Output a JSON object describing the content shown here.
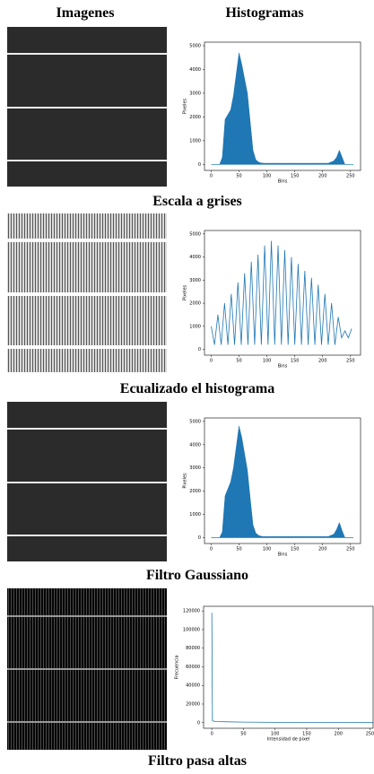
{
  "header": {
    "images": "Imagenes",
    "histograms": "Histogramas"
  },
  "captions": [
    "Escala a grises",
    "Ecualizado el histograma",
    "Filtro Gaussiano",
    "Filtro pasa altas"
  ],
  "chart_data": [
    {
      "type": "area",
      "color": "#1f77b4",
      "xlabel": "Bins",
      "ylabel": "Pixeles",
      "xlim": [
        -12,
        268
      ],
      "ylim": [
        -250,
        5150
      ],
      "xticks": [
        0,
        50,
        100,
        150,
        200,
        250
      ],
      "yticks": [
        0,
        1000,
        2000,
        3000,
        4000,
        5000
      ],
      "x": [
        0,
        5,
        10,
        15,
        20,
        25,
        30,
        35,
        40,
        45,
        50,
        55,
        60,
        65,
        70,
        75,
        80,
        85,
        90,
        95,
        100,
        105,
        110,
        115,
        120,
        125,
        130,
        135,
        140,
        145,
        150,
        155,
        160,
        165,
        170,
        175,
        180,
        185,
        190,
        195,
        200,
        205,
        210,
        215,
        220,
        225,
        230,
        235,
        240,
        245,
        250,
        255
      ],
      "values": [
        0,
        0,
        0,
        0,
        300,
        1900,
        2100,
        2300,
        2900,
        3800,
        4700,
        4200,
        3600,
        3000,
        1800,
        600,
        200,
        100,
        60,
        50,
        50,
        50,
        50,
        50,
        50,
        50,
        50,
        50,
        50,
        50,
        50,
        50,
        50,
        50,
        50,
        50,
        50,
        50,
        50,
        50,
        50,
        50,
        50,
        100,
        150,
        300,
        600,
        300,
        0,
        0,
        0,
        0
      ]
    },
    {
      "type": "line",
      "color": "#1f77b4",
      "xlabel": "Bins",
      "ylabel": "Pixeles",
      "xlim": [
        -12,
        268
      ],
      "ylim": [
        -250,
        5150
      ],
      "xticks": [
        0,
        50,
        100,
        150,
        200,
        250
      ],
      "yticks": [
        0,
        1000,
        2000,
        3000,
        4000,
        5000
      ],
      "x": [
        0,
        6,
        12,
        18,
        24,
        30,
        36,
        42,
        48,
        54,
        60,
        66,
        72,
        78,
        84,
        90,
        96,
        102,
        108,
        114,
        120,
        126,
        132,
        138,
        144,
        150,
        156,
        162,
        168,
        174,
        180,
        186,
        192,
        198,
        204,
        210,
        216,
        222,
        228,
        234,
        240,
        246,
        252
      ],
      "values": [
        1000,
        200,
        1500,
        200,
        2000,
        200,
        2400,
        200,
        2900,
        200,
        3300,
        200,
        3800,
        200,
        4100,
        200,
        4500,
        200,
        4700,
        200,
        4500,
        200,
        4300,
        200,
        4000,
        200,
        3700,
        200,
        3400,
        200,
        3100,
        200,
        2800,
        200,
        2400,
        200,
        2000,
        200,
        1400,
        500,
        800,
        500,
        900
      ]
    },
    {
      "type": "area",
      "color": "#1f77b4",
      "xlabel": "Bins",
      "ylabel": "Pixeles",
      "xlim": [
        -12,
        268
      ],
      "ylim": [
        -250,
        5150
      ],
      "xticks": [
        0,
        50,
        100,
        150,
        200,
        250
      ],
      "yticks": [
        0,
        1000,
        2000,
        3000,
        4000,
        5000
      ],
      "x": [
        0,
        5,
        10,
        15,
        20,
        25,
        30,
        35,
        40,
        45,
        50,
        55,
        60,
        65,
        70,
        75,
        80,
        85,
        90,
        95,
        100,
        105,
        110,
        115,
        120,
        125,
        130,
        135,
        140,
        145,
        150,
        155,
        160,
        165,
        170,
        175,
        180,
        185,
        190,
        195,
        200,
        205,
        210,
        215,
        220,
        225,
        230,
        235,
        240,
        245,
        250,
        255
      ],
      "values": [
        0,
        0,
        0,
        0,
        250,
        1800,
        2100,
        2400,
        3000,
        3900,
        4800,
        4300,
        3600,
        2900,
        1700,
        550,
        200,
        100,
        60,
        50,
        50,
        50,
        50,
        50,
        50,
        50,
        50,
        50,
        50,
        50,
        50,
        50,
        50,
        50,
        50,
        50,
        50,
        50,
        50,
        50,
        50,
        50,
        50,
        100,
        150,
        350,
        650,
        300,
        0,
        0,
        0,
        0
      ]
    },
    {
      "type": "line",
      "color": "#1f77b4",
      "xlabel": "Intensidad de pixel",
      "ylabel": "Frecuencia",
      "xlim": [
        -13,
        255
      ],
      "ylim": [
        -6000,
        125000
      ],
      "xticks": [
        0,
        50,
        100,
        150,
        200,
        250
      ],
      "yticks": [
        0,
        20000,
        40000,
        60000,
        80000,
        100000,
        120000
      ],
      "x": [
        0,
        1,
        5,
        50,
        100,
        150,
        200,
        255
      ],
      "values": [
        118000,
        2000,
        1200,
        600,
        400,
        250,
        150,
        100
      ]
    }
  ]
}
